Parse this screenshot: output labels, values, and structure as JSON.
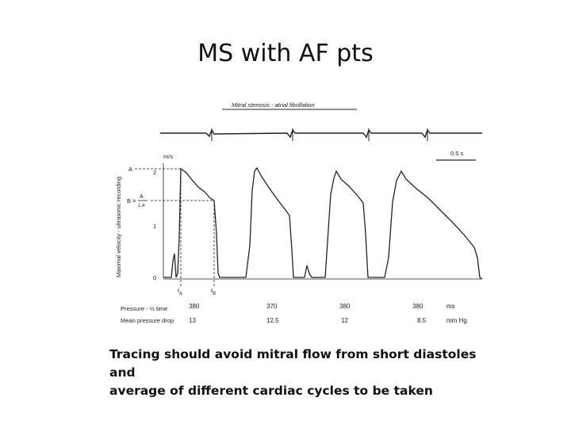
{
  "slide": {
    "title": "MS with AF pts",
    "caption_line1": "Tracing should avoid mitral flow from short  diastoles and",
    "caption_line2": "average of different cardiac cycles to be taken"
  },
  "figure": {
    "header": "Mitral stenosis - atrial fibrillation",
    "y_axis_label": "Maximal velocity - ultrasonic recording",
    "y_unit": "m/s",
    "y_ticks": [
      "0",
      "1",
      "2"
    ],
    "label_A": "A",
    "label_B": "B =",
    "fraction_num": "A",
    "fraction_den": "1.4",
    "scale_bar": "0.5 s",
    "time_tA": "t",
    "time_tA_sub": "A",
    "time_tB": "t",
    "time_tB_sub": "B",
    "row1_label": "Pressure - ½ time",
    "row2_label": "Mean pressure drop",
    "row1_values": [
      "380",
      "370",
      "380",
      "380"
    ],
    "row1_unit": "ms",
    "row2_values": [
      "13",
      "12.5",
      "12",
      "8.5"
    ],
    "row2_unit": "mm Hg",
    "peak_velocities_m_s": [
      2.2,
      2.2,
      2.1,
      2.1
    ]
  }
}
